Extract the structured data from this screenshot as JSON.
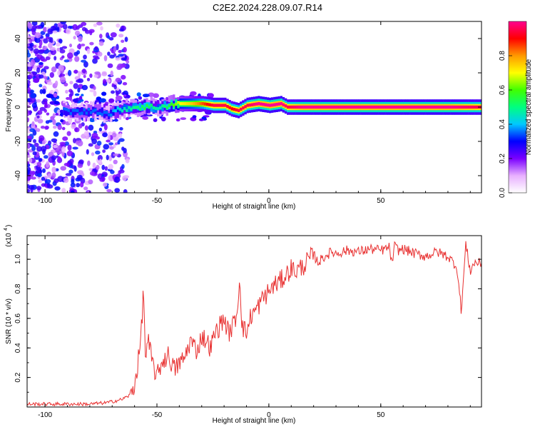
{
  "title": "C2E2.2024.228.09.07.R14",
  "chart_data": [
    {
      "type": "heatmap",
      "xlabel": "Height of straight line (km)",
      "ylabel": "Frequency (Hz)",
      "xlim": [
        -108,
        95
      ],
      "ylim": [
        -50,
        50
      ],
      "x_ticks": [
        "-100",
        "-50",
        "0",
        "50"
      ],
      "x_tick_values": [
        -100,
        -50,
        0,
        50
      ],
      "y_ticks": [
        "-40",
        "-20",
        "0",
        "20",
        "40"
      ],
      "y_tick_values": [
        -40,
        -20,
        0,
        20,
        40
      ],
      "colorbar": {
        "label": "Normalized spectral amplitude",
        "range": [
          0,
          1
        ],
        "ticks": [
          "0.0",
          "0.2",
          "0.4",
          "0.6",
          "0.8"
        ],
        "tick_values": [
          0,
          0.2,
          0.4,
          0.6,
          0.8
        ],
        "colors": [
          "#ffffff",
          "#e8b0ff",
          "#7a00ff",
          "#0000ff",
          "#00c8ff",
          "#00ff80",
          "#40ff00",
          "#ffff00",
          "#ff9900",
          "#ff0000",
          "#ff0090"
        ]
      },
      "ridge": {
        "x": [
          -92,
          -85,
          -78,
          -72,
          -66,
          -60,
          -55,
          -50,
          -45,
          -40,
          -35,
          -30,
          -25,
          -20,
          -17,
          -14,
          -10,
          -5,
          0,
          5,
          8,
          15,
          25,
          40,
          60,
          80,
          95
        ],
        "frequency": [
          -2,
          -3,
          -2,
          -4,
          -1,
          0,
          0,
          0,
          1,
          2,
          2,
          2,
          1,
          1,
          -1,
          -2,
          1,
          2,
          1,
          2,
          0,
          0,
          0,
          0,
          0,
          0,
          0
        ],
        "amplitude": [
          0.35,
          0.35,
          0.35,
          0.35,
          0.45,
          0.5,
          0.55,
          0.45,
          0.55,
          0.7,
          0.75,
          0.85,
          0.95,
          0.95,
          0.9,
          0.95,
          0.95,
          1.0,
          1.0,
          1.0,
          0.95,
          1.0,
          1.0,
          1.0,
          1.0,
          1.0,
          0.95
        ]
      }
    },
    {
      "type": "line",
      "xlabel": "Height of straight line (km)",
      "ylabel": "SNR (10 * v/v)",
      "y_multiplier": "(x10",
      "y_multiplier_exp": "4",
      "y_multiplier_close": ")",
      "xlim": [
        -108,
        95
      ],
      "ylim": [
        0,
        1.16
      ],
      "x_ticks": [
        "-100",
        "-50",
        "0",
        "50"
      ],
      "x_tick_values": [
        -100,
        -50,
        0,
        50
      ],
      "y_ticks": [
        "0.2",
        "0.4",
        "0.6",
        "0.8",
        "1.0"
      ],
      "y_tick_values": [
        0.2,
        0.4,
        0.6,
        0.8,
        1.0
      ],
      "series": [
        {
          "color": "#e83030",
          "x": [
            -108,
            -100,
            -90,
            -80,
            -72,
            -66,
            -62,
            -60,
            -58,
            -57,
            -56,
            -55,
            -54,
            -52,
            -50,
            -48,
            -45,
            -42,
            -40,
            -38,
            -35,
            -32,
            -30,
            -28,
            -26,
            -24,
            -22,
            -20,
            -18,
            -16,
            -14,
            -13,
            -12,
            -10,
            -8,
            -6,
            -4,
            -2,
            0,
            2,
            5,
            8,
            10,
            12,
            15,
            18,
            20,
            22,
            25,
            28,
            30,
            35,
            40,
            45,
            50,
            54,
            55,
            56,
            58,
            60,
            65,
            70,
            75,
            80,
            84,
            86,
            88,
            90,
            92,
            95
          ],
          "y": [
            0.02,
            0.02,
            0.02,
            0.02,
            0.03,
            0.05,
            0.08,
            0.15,
            0.35,
            0.5,
            0.8,
            0.3,
            0.45,
            0.3,
            0.2,
            0.3,
            0.35,
            0.25,
            0.3,
            0.32,
            0.45,
            0.38,
            0.48,
            0.45,
            0.4,
            0.5,
            0.55,
            0.6,
            0.5,
            0.55,
            0.65,
            0.91,
            0.55,
            0.5,
            0.62,
            0.65,
            0.7,
            0.75,
            0.78,
            0.82,
            0.85,
            0.9,
            0.94,
            0.92,
            0.95,
            1.0,
            1.03,
            0.98,
            1.02,
            1.05,
            1.04,
            1.06,
            1.05,
            1.07,
            1.06,
            1.08,
            0.95,
            1.09,
            1.06,
            1.07,
            1.04,
            1.02,
            1.05,
            1.02,
            0.95,
            0.65,
            1.1,
            0.92,
            0.98,
            0.97
          ]
        }
      ]
    }
  ]
}
